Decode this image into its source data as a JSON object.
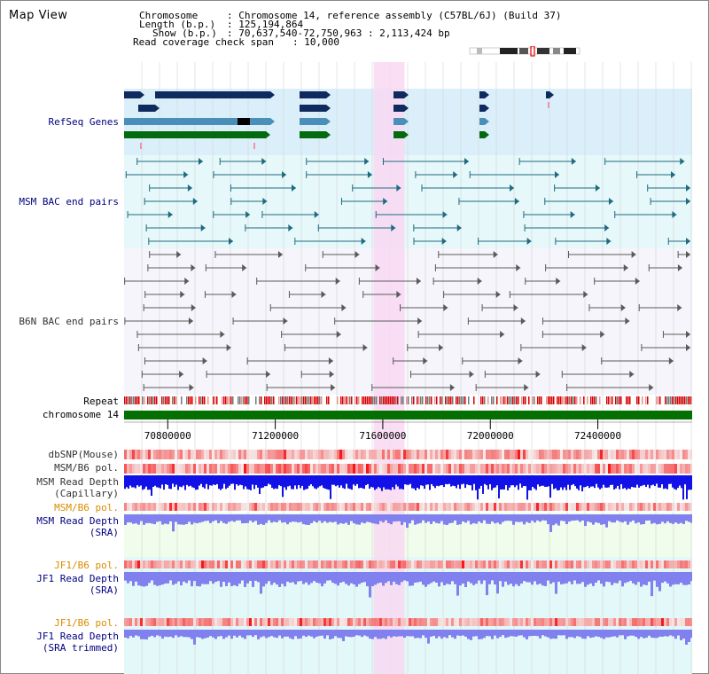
{
  "title": "Map View",
  "info": {
    "chromosome_key": "Chromosome",
    "chromosome_val": ": Chromosome 14, reference assembly (C57BL/6J) (Build 37)",
    "length_key": "Length (b.p.)",
    "length_val": ": 125,194,864",
    "show_key": "Show (b.p.)",
    "show_val": ": 70,637,540-72,750,963 : 2,113,424 bp",
    "coverage_key": "Read coverage check span",
    "coverage_val": ": 10,000"
  },
  "tracks": {
    "refseq": "RefSeq Genes",
    "msm_bac": "MSM BAC end pairs",
    "b6n_bac": "B6N BAC end pairs",
    "repeat": "Repeat",
    "chromosome": "chromosome 14",
    "dbsnp": "dbSNP(Mouse)",
    "msm_b6_pol": "MSM/B6 pol.",
    "msm_depth_cap_1": "MSM Read Depth",
    "msm_depth_cap_2": "(Capillary)",
    "msm_b6_pol_2": "MSM/B6 pol.",
    "msm_depth_sra_1": "MSM Read Depth",
    "msm_depth_sra_2": "(SRA)",
    "jf1_b6_pol": "JF1/B6 pol.",
    "jf1_depth_sra_1": "JF1 Read Depth",
    "jf1_depth_sra_2": "(SRA)",
    "jf1_b6_pol_2": "JF1/B6 pol.",
    "jf1_depth_trim_1": "JF1 Read Depth",
    "jf1_depth_trim_2": "(SRA trimmed)"
  },
  "axis": {
    "ticks": [
      70800000,
      71200000,
      71600000,
      72000000,
      72400000
    ],
    "range": [
      70637540,
      72750963
    ]
  },
  "highlight": {
    "start": 71566000,
    "end": 71681000
  },
  "colors": {
    "refseq_bg": "#dbeffa",
    "bac_bg": "#e6f8fa",
    "b6n_bg": "#f5f5fb",
    "highlight": "#f8d8f2",
    "navy_gene": "#0e2a5e",
    "steel_gene": "#4a8fb8",
    "green_gene": "#046a10",
    "msm_bac": "#1f6a80",
    "b6n_bac": "#5a5a5a",
    "chrom": "#047004",
    "depth_cap": "#1212e6",
    "depth_sra": "#8080ee",
    "sra_bg_msm": "#f0fcec",
    "sra_bg_jf1": "#e3f8f8"
  }
}
